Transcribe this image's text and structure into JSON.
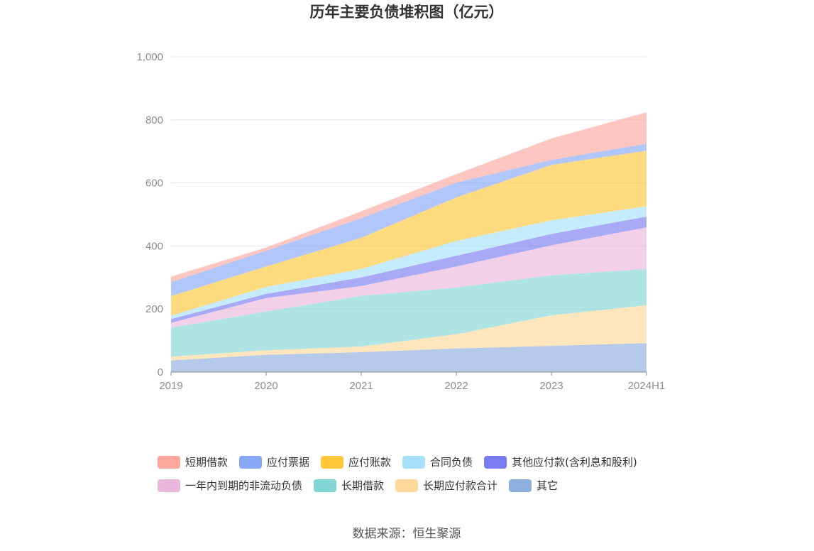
{
  "source_label": "数据来源：恒生聚源",
  "chart_data": {
    "type": "area",
    "stacked": true,
    "title": "历年主要负债堆积图（亿元）",
    "categories": [
      "2019",
      "2020",
      "2021",
      "2022",
      "2023",
      "2024H1"
    ],
    "ylim": [
      0,
      1000
    ],
    "yticks": [
      0,
      200,
      400,
      600,
      800,
      1000
    ],
    "ytick_labels": [
      "0",
      "200",
      "400",
      "600",
      "800",
      "1,000"
    ],
    "grid": true,
    "legend_position": "bottom",
    "series": [
      {
        "name": "其它",
        "color": "#8eaedd",
        "values": [
          37,
          55,
          63,
          75,
          83,
          92
        ]
      },
      {
        "name": "长期应付款合计",
        "color": "#ffd999",
        "values": [
          12,
          14,
          18,
          45,
          97,
          120
        ]
      },
      {
        "name": "长期借款",
        "color": "#82d5d5",
        "values": [
          92,
          123,
          161,
          148,
          127,
          115
        ]
      },
      {
        "name": "一年内到期的非流动负债",
        "color": "#eab7dc",
        "values": [
          15,
          43,
          31,
          67,
          95,
          132
        ]
      },
      {
        "name": "其他应付款(含利息和股利)",
        "color": "#7a7cf1",
        "values": [
          12,
          13,
          27,
          34,
          36,
          34
        ]
      },
      {
        "name": "合同负债",
        "color": "#a6e0fa",
        "values": [
          11,
          22,
          27,
          47,
          43,
          33
        ]
      },
      {
        "name": "应付账款",
        "color": "#ffc83c",
        "values": [
          62,
          65,
          99,
          138,
          176,
          176
        ]
      },
      {
        "name": "应付票据",
        "color": "#87a7f7",
        "values": [
          44,
          50,
          62,
          47,
          16,
          22
        ]
      },
      {
        "name": "短期借款",
        "color": "#fca79e",
        "values": [
          18,
          10,
          22,
          27,
          68,
          100
        ]
      }
    ],
    "legend_order": [
      "短期借款",
      "应付票据",
      "应付账款",
      "合同负债",
      "其他应付款(含利息和股利)",
      "一年内到期的非流动负债",
      "长期借款",
      "长期应付款合计",
      "其它"
    ]
  }
}
